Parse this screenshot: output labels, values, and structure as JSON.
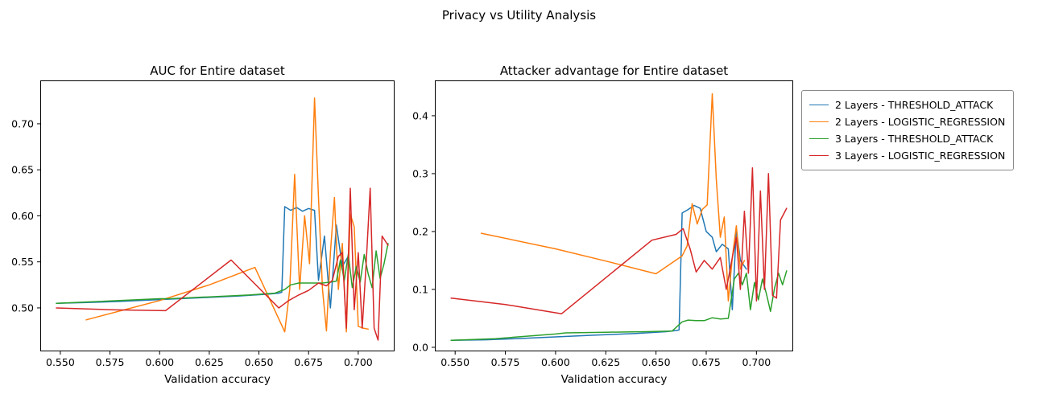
{
  "figure": {
    "title": "Privacy vs Utility Analysis"
  },
  "legend": {
    "entries": [
      {
        "label": "2 Layers - THRESHOLD_ATTACK",
        "color": "#1f77b4"
      },
      {
        "label": "2 Layers - LOGISTIC_REGRESSION",
        "color": "#ff7f0e"
      },
      {
        "label": "3 Layers - THRESHOLD_ATTACK",
        "color": "#2ca02c"
      },
      {
        "label": "3 Layers - LOGISTIC_REGRESSION",
        "color": "#d62728"
      }
    ]
  },
  "chart_data": [
    {
      "type": "line",
      "title": "AUC for Entire dataset",
      "xlabel": "Validation accuracy",
      "ylabel": "",
      "xlim": [
        0.5399,
        0.7183
      ],
      "ylim": [
        0.4528,
        0.7471
      ],
      "xticks": [
        0.55,
        0.575,
        0.6,
        0.625,
        0.65,
        0.675,
        0.7
      ],
      "xtick_labels": [
        "0.550",
        "0.575",
        "0.600",
        "0.625",
        "0.650",
        "0.675",
        "0.700"
      ],
      "yticks": [
        0.5,
        0.55,
        0.6,
        0.65,
        0.7
      ],
      "ytick_labels": [
        "0.50",
        "0.55",
        "0.60",
        "0.65",
        "0.70"
      ],
      "grid": false,
      "series": [
        {
          "name": "2 Layers - THRESHOLD_ATTACK",
          "color": "#1f77b4",
          "x": [
            0.548,
            0.565,
            0.58,
            0.6,
            0.62,
            0.64,
            0.655,
            0.66,
            0.6615,
            0.663,
            0.666,
            0.669,
            0.672,
            0.675,
            0.678,
            0.68,
            0.683,
            0.686,
            0.689,
            0.692,
            0.695
          ],
          "y": [
            0.505,
            0.506,
            0.507,
            0.509,
            0.511,
            0.513,
            0.515,
            0.516,
            0.517,
            0.61,
            0.606,
            0.609,
            0.605,
            0.608,
            0.606,
            0.53,
            0.578,
            0.5,
            0.59,
            0.545,
            0.556
          ]
        },
        {
          "name": "2 Layers - LOGISTIC_REGRESSION",
          "color": "#ff7f0e",
          "x": [
            0.563,
            0.6,
            0.625,
            0.648,
            0.663,
            0.6655,
            0.668,
            0.6705,
            0.673,
            0.6755,
            0.678,
            0.68,
            0.682,
            0.684,
            0.686,
            0.688,
            0.69,
            0.692,
            0.694,
            0.696,
            0.698,
            0.7,
            0.7025,
            0.705
          ],
          "y": [
            0.487,
            0.508,
            0.525,
            0.544,
            0.474,
            0.52,
            0.645,
            0.52,
            0.6,
            0.548,
            0.728,
            0.62,
            0.52,
            0.475,
            0.56,
            0.62,
            0.52,
            0.57,
            0.474,
            0.602,
            0.588,
            0.48,
            0.478,
            0.477
          ]
        },
        {
          "name": "3 Layers - THRESHOLD_ATTACK",
          "color": "#2ca02c",
          "x": [
            0.548,
            0.57,
            0.6,
            0.605,
            0.625,
            0.645,
            0.658,
            0.663,
            0.666,
            0.67,
            0.674,
            0.678,
            0.682,
            0.686,
            0.689,
            0.691,
            0.693,
            0.695,
            0.697,
            0.699,
            0.701,
            0.703,
            0.705,
            0.707,
            0.709,
            0.711,
            0.713,
            0.715
          ],
          "y": [
            0.505,
            0.507,
            0.51,
            0.51,
            0.512,
            0.514,
            0.516,
            0.52,
            0.525,
            0.527,
            0.527,
            0.527,
            0.527,
            0.528,
            0.529,
            0.552,
            0.53,
            0.558,
            0.522,
            0.545,
            0.528,
            0.558,
            0.537,
            0.522,
            0.562,
            0.532,
            0.548,
            0.57
          ]
        },
        {
          "name": "3 Layers - LOGISTIC_REGRESSION",
          "color": "#d62728",
          "x": [
            0.548,
            0.575,
            0.603,
            0.636,
            0.66,
            0.665,
            0.67,
            0.675,
            0.68,
            0.684,
            0.687,
            0.69,
            0.692,
            0.694,
            0.696,
            0.698,
            0.7,
            0.702,
            0.704,
            0.706,
            0.708,
            0.71,
            0.712,
            0.715
          ],
          "y": [
            0.5,
            0.498,
            0.497,
            0.552,
            0.5,
            0.508,
            0.514,
            0.519,
            0.527,
            0.524,
            0.53,
            0.556,
            0.56,
            0.478,
            0.63,
            0.498,
            0.56,
            0.478,
            0.548,
            0.63,
            0.478,
            0.465,
            0.578,
            0.568
          ]
        }
      ]
    },
    {
      "type": "line",
      "title": "Attacker advantage for Entire dataset",
      "xlabel": "Validation accuracy",
      "ylabel": "",
      "xlim": [
        0.5399,
        0.7183
      ],
      "ylim": [
        -0.007,
        0.461
      ],
      "xticks": [
        0.55,
        0.575,
        0.6,
        0.625,
        0.65,
        0.675,
        0.7
      ],
      "xtick_labels": [
        "0.550",
        "0.575",
        "0.600",
        "0.625",
        "0.650",
        "0.675",
        "0.700"
      ],
      "yticks": [
        0.0,
        0.1,
        0.2,
        0.3,
        0.4
      ],
      "ytick_labels": [
        "0.0",
        "0.1",
        "0.2",
        "0.3",
        "0.4"
      ],
      "grid": false,
      "series": [
        {
          "name": "2 Layers - THRESHOLD_ATTACK",
          "color": "#1f77b4",
          "x": [
            0.548,
            0.565,
            0.58,
            0.6,
            0.62,
            0.64,
            0.655,
            0.66,
            0.6615,
            0.663,
            0.666,
            0.669,
            0.672,
            0.675,
            0.678,
            0.68,
            0.683,
            0.686,
            0.688,
            0.69,
            0.692,
            0.695
          ],
          "y": [
            0.012,
            0.013,
            0.015,
            0.018,
            0.021,
            0.024,
            0.027,
            0.029,
            0.03,
            0.232,
            0.238,
            0.245,
            0.24,
            0.2,
            0.19,
            0.165,
            0.178,
            0.17,
            0.065,
            0.205,
            0.15,
            0.135
          ]
        },
        {
          "name": "2 Layers - LOGISTIC_REGRESSION",
          "color": "#ff7f0e",
          "x": [
            0.563,
            0.6,
            0.625,
            0.65,
            0.663,
            0.6655,
            0.668,
            0.6705,
            0.673,
            0.6755,
            0.678,
            0.68,
            0.682,
            0.684,
            0.686,
            0.688,
            0.69,
            0.692,
            0.694
          ],
          "y": [
            0.197,
            0.17,
            0.149,
            0.127,
            0.158,
            0.175,
            0.248,
            0.213,
            0.238,
            0.246,
            0.438,
            0.29,
            0.19,
            0.225,
            0.08,
            0.155,
            0.21,
            0.135,
            0.15
          ]
        },
        {
          "name": "3 Layers - THRESHOLD_ATTACK",
          "color": "#2ca02c",
          "x": [
            0.548,
            0.57,
            0.6,
            0.605,
            0.625,
            0.645,
            0.658,
            0.663,
            0.666,
            0.67,
            0.674,
            0.678,
            0.682,
            0.686,
            0.689,
            0.691,
            0.693,
            0.695,
            0.697,
            0.699,
            0.701,
            0.703,
            0.705,
            0.707,
            0.709,
            0.711,
            0.713,
            0.715
          ],
          "y": [
            0.012,
            0.015,
            0.023,
            0.025,
            0.026,
            0.027,
            0.028,
            0.044,
            0.047,
            0.046,
            0.046,
            0.051,
            0.049,
            0.05,
            0.118,
            0.128,
            0.108,
            0.128,
            0.065,
            0.112,
            0.082,
            0.118,
            0.092,
            0.062,
            0.102,
            0.128,
            0.108,
            0.132
          ]
        },
        {
          "name": "3 Layers - LOGISTIC_REGRESSION",
          "color": "#d62728",
          "x": [
            0.548,
            0.575,
            0.603,
            0.648,
            0.66,
            0.6635,
            0.667,
            0.67,
            0.674,
            0.678,
            0.682,
            0.685,
            0.688,
            0.69,
            0.692,
            0.694,
            0.696,
            0.698,
            0.7,
            0.702,
            0.704,
            0.706,
            0.708,
            0.71,
            0.712,
            0.715
          ],
          "y": [
            0.085,
            0.074,
            0.058,
            0.185,
            0.195,
            0.205,
            0.17,
            0.13,
            0.15,
            0.135,
            0.155,
            0.1,
            0.155,
            0.19,
            0.1,
            0.235,
            0.128,
            0.31,
            0.08,
            0.27,
            0.1,
            0.3,
            0.09,
            0.085,
            0.22,
            0.24
          ]
        }
      ]
    }
  ]
}
